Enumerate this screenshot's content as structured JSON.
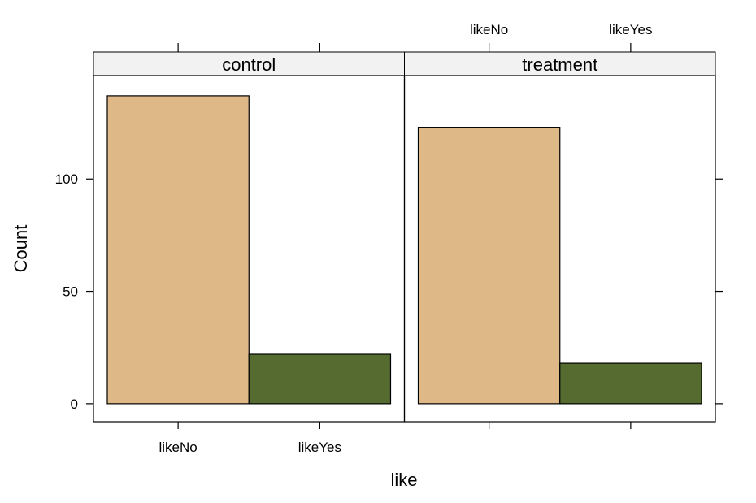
{
  "chart_data": {
    "type": "bar",
    "layout": "trellis-two-panels",
    "xlabel": "like",
    "ylabel": "Count",
    "ylim": [
      -8,
      146
    ],
    "yticks": [
      0,
      50,
      100
    ],
    "categories": [
      "likeNo",
      "likeYes"
    ],
    "panels": [
      {
        "strip": "control",
        "values": [
          137,
          22
        ]
      },
      {
        "strip": "treatment",
        "values": [
          123,
          18
        ]
      }
    ],
    "colors": {
      "likeNo": "#DEB887",
      "likeYes": "#556B2F",
      "strip": "#F2F2F2"
    },
    "grid": false,
    "legend": "none"
  }
}
